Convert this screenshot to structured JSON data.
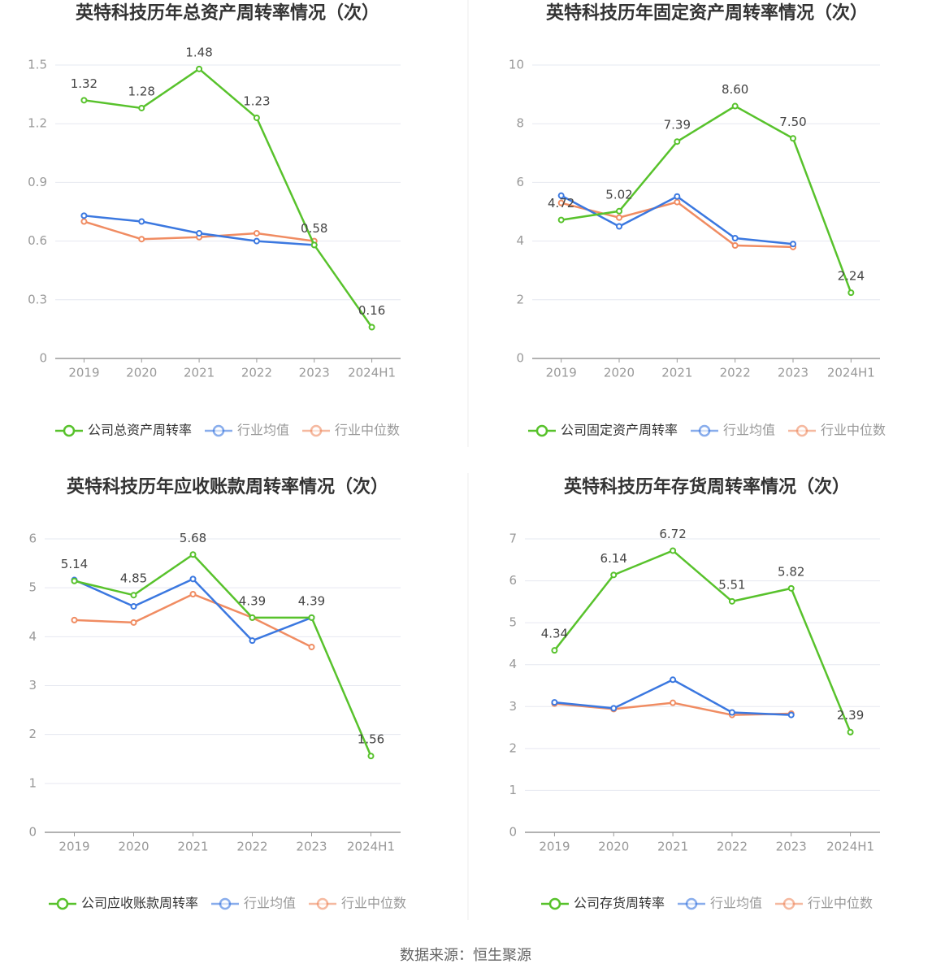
{
  "chart_data": [
    {
      "type": "line",
      "title": "英特科技历年总资产周转率情况（次）",
      "categories": [
        "2019",
        "2020",
        "2021",
        "2022",
        "2023",
        "2024H1"
      ],
      "series": [
        {
          "name": "公司总资产周转率",
          "color": "#58c22c",
          "values": [
            1.32,
            1.28,
            1.48,
            1.23,
            0.58,
            0.16
          ],
          "value_labels": [
            "1.32",
            "1.28",
            "1.48",
            "1.23",
            "0.58",
            "0.16"
          ]
        },
        {
          "name": "行业均值",
          "color": "#3b78e0",
          "values": [
            0.73,
            0.7,
            0.64,
            0.6,
            0.58,
            null
          ]
        },
        {
          "name": "行业中位数",
          "color": "#f08c62",
          "values": [
            0.7,
            0.61,
            0.62,
            0.64,
            0.6,
            null
          ]
        }
      ],
      "ylim": [
        0,
        1.5
      ],
      "yticks": [
        0,
        0.3,
        0.6,
        0.9,
        1.2,
        1.5
      ],
      "grid": true,
      "legend": "bottom"
    },
    {
      "type": "line",
      "title": "英特科技历年固定资产周转率情况（次）",
      "categories": [
        "2019",
        "2020",
        "2021",
        "2022",
        "2023",
        "2024H1"
      ],
      "series": [
        {
          "name": "公司固定资产周转率",
          "color": "#58c22c",
          "values": [
            4.72,
            5.02,
            7.39,
            8.6,
            7.5,
            2.24
          ],
          "value_labels": [
            "4.72",
            "5.02",
            "7.39",
            "8.60",
            "7.50",
            "2.24"
          ]
        },
        {
          "name": "行业均值",
          "color": "#3b78e0",
          "values": [
            5.55,
            4.5,
            5.52,
            4.1,
            3.9,
            null
          ]
        },
        {
          "name": "行业中位数",
          "color": "#f08c62",
          "values": [
            5.3,
            4.8,
            5.33,
            3.85,
            3.8,
            null
          ]
        }
      ],
      "ylim": [
        0,
        10
      ],
      "yticks": [
        0,
        2,
        4,
        6,
        8,
        10
      ],
      "grid": true,
      "legend": "bottom"
    },
    {
      "type": "line",
      "title": "英特科技历年应收账款周转率情况（次）",
      "categories": [
        "2019",
        "2020",
        "2021",
        "2022",
        "2023",
        "2024H1"
      ],
      "series": [
        {
          "name": "公司应收账款周转率",
          "color": "#58c22c",
          "values": [
            5.14,
            4.85,
            5.68,
            4.39,
            4.39,
            1.56
          ],
          "value_labels": [
            "5.14",
            "4.85",
            "5.68",
            "4.39",
            "4.39",
            "1.56"
          ]
        },
        {
          "name": "行业均值",
          "color": "#3b78e0",
          "values": [
            5.16,
            4.62,
            5.18,
            3.92,
            4.39,
            null
          ]
        },
        {
          "name": "行业中位数",
          "color": "#f08c62",
          "values": [
            4.34,
            4.29,
            4.87,
            4.39,
            3.79,
            null
          ]
        }
      ],
      "ylim": [
        0,
        6
      ],
      "yticks": [
        0,
        1,
        2,
        3,
        4,
        5,
        6
      ],
      "grid": true,
      "legend": "bottom"
    },
    {
      "type": "line",
      "title": "英特科技历年存货周转率情况（次）",
      "categories": [
        "2019",
        "2020",
        "2021",
        "2022",
        "2023",
        "2024H1"
      ],
      "series": [
        {
          "name": "公司存货周转率",
          "color": "#58c22c",
          "values": [
            4.34,
            6.14,
            6.72,
            5.51,
            5.82,
            2.39
          ],
          "value_labels": [
            "4.34",
            "6.14",
            "6.72",
            "5.51",
            "5.82",
            "2.39"
          ]
        },
        {
          "name": "行业均值",
          "color": "#3b78e0",
          "values": [
            3.1,
            2.96,
            3.64,
            2.86,
            2.8,
            null
          ]
        },
        {
          "name": "行业中位数",
          "color": "#f08c62",
          "values": [
            3.07,
            2.94,
            3.09,
            2.8,
            2.83,
            null
          ]
        }
      ],
      "ylim": [
        0,
        7
      ],
      "yticks": [
        0,
        1,
        2,
        3,
        4,
        5,
        6,
        7
      ],
      "grid": true,
      "legend": "bottom"
    }
  ],
  "source": "数据来源：恒生聚源"
}
